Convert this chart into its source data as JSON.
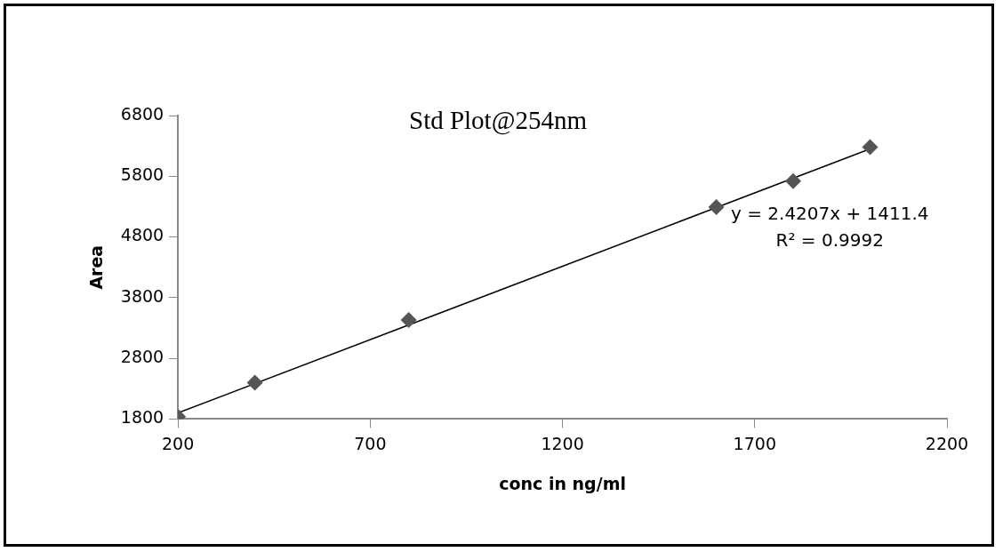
{
  "chart_data": {
    "type": "scatter",
    "title": "Std Plot@254nm",
    "xlabel": "conc in ng/ml",
    "ylabel": "Area",
    "x": [
      200,
      400,
      800,
      1600,
      1800,
      2000
    ],
    "series": [
      {
        "color": "#555555",
        "marker": "diamond",
        "values": [
          1840,
          2400,
          3430,
          5290,
          5720,
          6280
        ]
      },
      {
        "type": "line",
        "color": "#000000",
        "marker": "none",
        "x": [
          200,
          2000
        ],
        "values": [
          1900,
          6250
        ]
      }
    ],
    "xlim": [
      200,
      2200
    ],
    "xticks": [
      200,
      700,
      1200,
      1700,
      2200
    ],
    "ylim": [
      1800,
      6800
    ],
    "yticks": [
      1800,
      2800,
      3800,
      4800,
      5800,
      6800
    ],
    "grid": false,
    "legend": false,
    "annotations": [
      "y = 2.4207x + 1411.4",
      "R² = 0.9992"
    ]
  }
}
